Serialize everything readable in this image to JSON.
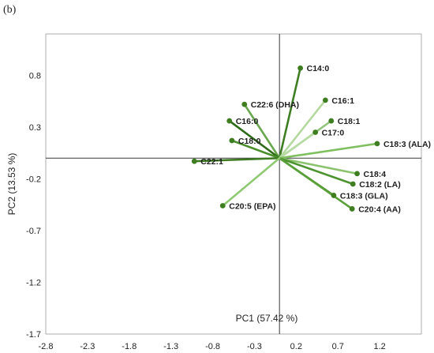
{
  "panel_label": "(b)",
  "chart_data": {
    "type": "scatter",
    "subtype": "biplot",
    "xlabel": "PC1 (57.42 %)",
    "ylabel": "PC2 (13.53 %)",
    "xlim": [
      -2.8,
      1.7
    ],
    "ylim": [
      -1.7,
      1.2
    ],
    "x_ticks": [
      "-2.8",
      "-2.3",
      "-1.8",
      "-1.3",
      "-0.8",
      "-0.3",
      "0.2",
      "0.7",
      "1.2"
    ],
    "y_ticks": [
      "0.8",
      "0.3",
      "-0.2",
      "-0.7",
      "-1.2",
      "-1.7"
    ],
    "grid": false,
    "legend": "none",
    "points": [
      {
        "label": "C14:0",
        "x": 0.25,
        "y": 0.87,
        "color": "#3f7f23"
      },
      {
        "label": "C16:1",
        "x": 0.55,
        "y": 0.56,
        "color": "#b4d99e"
      },
      {
        "label": "C22:6 (DHA)",
        "x": -0.42,
        "y": 0.52,
        "color": "#6aa84f"
      },
      {
        "label": "C18:1",
        "x": 0.62,
        "y": 0.36,
        "color": "#93c47d"
      },
      {
        "label": "C16:0",
        "x": -0.6,
        "y": 0.36,
        "color": "#2e6b19"
      },
      {
        "label": "C17:0",
        "x": 0.43,
        "y": 0.25,
        "color": "#b7dba4"
      },
      {
        "label": "C18:0",
        "x": -0.57,
        "y": 0.17,
        "color": "#4a8f2b"
      },
      {
        "label": "C18:3 (ALA)",
        "x": 1.17,
        "y": 0.14,
        "color": "#7fbf5f"
      },
      {
        "label": "C22:1",
        "x": -1.02,
        "y": -0.03,
        "color": "#3d7a22"
      },
      {
        "label": "C18:4",
        "x": 0.93,
        "y": -0.15,
        "color": "#8cc36e"
      },
      {
        "label": "C18:2 (LA)",
        "x": 0.88,
        "y": -0.25,
        "color": "#4d9430"
      },
      {
        "label": "C18:3 (GLA)",
        "x": 0.65,
        "y": -0.36,
        "color": "#3f8625"
      },
      {
        "label": "C20:4 (AA)",
        "x": 0.87,
        "y": -0.49,
        "color": "#5aa13a"
      },
      {
        "label": "C20:5 (EPA)",
        "x": -0.68,
        "y": -0.46,
        "color": "#8fca72"
      }
    ]
  }
}
